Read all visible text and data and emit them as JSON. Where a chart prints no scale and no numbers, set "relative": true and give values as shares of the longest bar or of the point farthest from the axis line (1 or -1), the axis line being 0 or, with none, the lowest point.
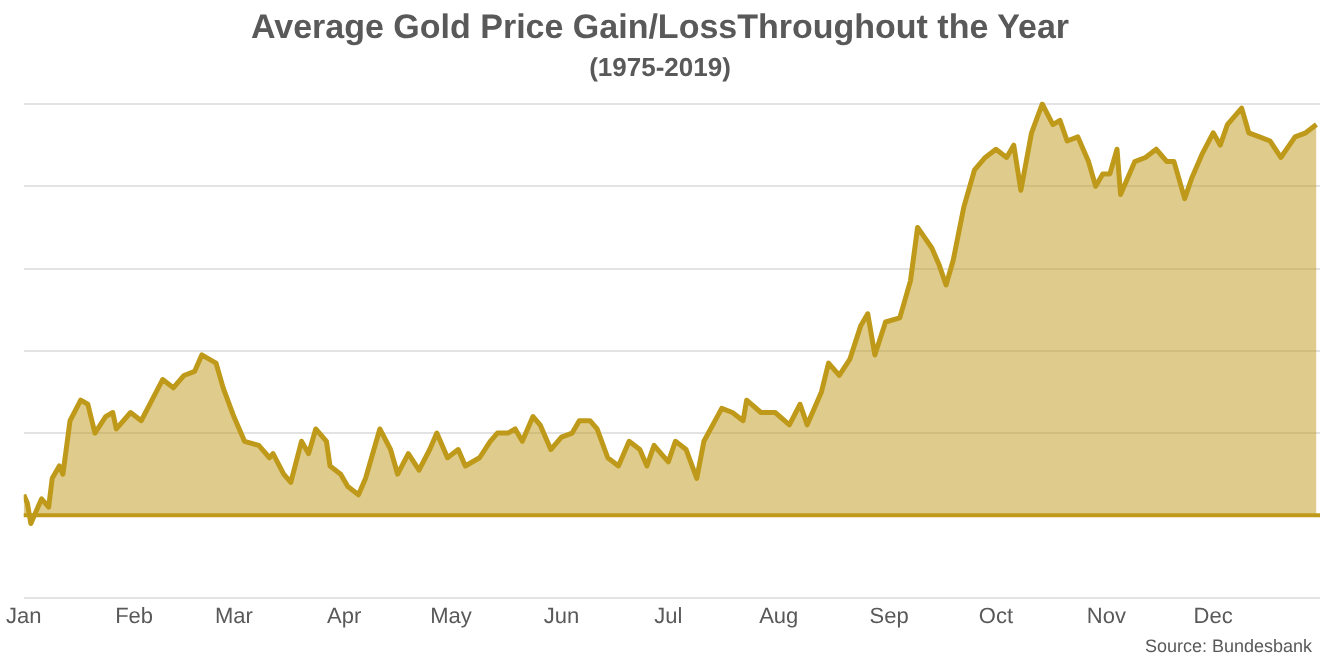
{
  "chart_data": {
    "type": "area",
    "title": "Average Gold Price Gain/LossThroughout the Year",
    "subtitle": "(1975-2019)",
    "relative": true,
    "grid": "y",
    "ref_lines": [
      {
        "axis": "y",
        "value": 0,
        "color": "#bf9a1a"
      }
    ],
    "annotations": [
      "Source: Bundesbank"
    ],
    "xlim": [
      "--01-01",
      "--12-31"
    ],
    "xticks": [
      {
        "value": "--01-01",
        "label": "Jan"
      },
      {
        "value": "--02-01",
        "label": "Feb"
      },
      {
        "value": "--03-01",
        "label": "Mar"
      },
      {
        "value": "--04-01",
        "label": "Apr"
      },
      {
        "value": "--05-01",
        "label": "May"
      },
      {
        "value": "--06-01",
        "label": "Jun"
      },
      {
        "value": "--07-01",
        "label": "Jul"
      },
      {
        "value": "--08-01",
        "label": "Aug"
      },
      {
        "value": "--09-01",
        "label": "Sep"
      },
      {
        "value": "--10-01",
        "label": "Oct"
      },
      {
        "value": "--11-01",
        "label": "Nov"
      },
      {
        "value": "--12-01",
        "label": "Dec"
      }
    ],
    "series": [
      {
        "color": "#bf9a1a",
        "x": [
          "--01-01",
          "--01-02",
          "--01-03",
          "--01-05",
          "--01-06",
          "--01-08",
          "--01-09",
          "--01-11",
          "--01-12",
          "--01-14",
          "--01-17",
          "--01-19",
          "--01-21",
          "--01-24",
          "--01-26",
          "--01-27",
          "--01-31",
          "--02-03",
          "--02-06",
          "--02-09",
          "--02-12",
          "--02-15",
          "--02-18",
          "--02-20",
          "--02-24",
          "--02-26",
          "--03-01",
          "--03-04",
          "--03-08",
          "--03-11",
          "--03-12",
          "--03-15",
          "--03-17",
          "--03-20",
          "--03-22",
          "--03-24",
          "--03-27",
          "--03-28",
          "--03-31",
          "--04-02",
          "--04-05",
          "--04-07",
          "--04-10",
          "--04-11",
          "--04-14",
          "--04-16",
          "--04-19",
          "--04-22",
          "--04-25",
          "--04-27",
          "--04-30",
          "--05-03",
          "--05-05",
          "--05-09",
          "--05-12",
          "--05-14",
          "--05-17",
          "--05-19",
          "--05-21",
          "--05-24",
          "--05-26",
          "--05-29",
          "--06-01",
          "--06-04",
          "--06-06",
          "--06-09",
          "--06-11",
          "--06-14",
          "--06-17",
          "--06-20",
          "--06-23",
          "--06-25",
          "--06-27",
          "--06-28",
          "--07-01",
          "--07-03",
          "--07-06",
          "--07-09",
          "--07-11",
          "--07-16",
          "--07-19",
          "--07-22",
          "--07-23",
          "--07-27",
          "--07-31",
          "--08-04",
          "--08-07",
          "--08-09",
          "--08-13",
          "--08-15",
          "--08-18",
          "--08-21",
          "--08-24",
          "--08-26",
          "--08-28",
          "--08-31",
          "--09-04",
          "--09-07",
          "--09-09",
          "--09-13",
          "--09-15",
          "--09-17",
          "--09-19",
          "--09-22",
          "--09-25",
          "--09-28",
          "--10-01",
          "--10-04",
          "--10-06",
          "--10-08",
          "--10-11",
          "--10-14",
          "--10-17",
          "--10-19",
          "--10-21",
          "--10-24",
          "--10-27",
          "--10-29",
          "--10-31",
          "--11-02",
          "--11-04",
          "--11-05",
          "--11-09",
          "--11-12",
          "--11-15",
          "--11-18",
          "--11-20",
          "--11-23",
          "--11-25",
          "--11-28",
          "--12-01",
          "--12-03",
          "--12-05",
          "--12-09",
          "--12-11",
          "--12-14",
          "--12-17",
          "--12-20",
          "--12-24",
          "--12-27",
          "--12-30"
        ],
        "values": [
          0.05,
          0.03,
          -0.02,
          0.02,
          0.04,
          0.02,
          0.09,
          0.12,
          0.1,
          0.23,
          0.28,
          0.27,
          0.2,
          0.24,
          0.25,
          0.21,
          0.25,
          0.23,
          0.28,
          0.33,
          0.31,
          0.34,
          0.35,
          0.39,
          0.37,
          0.31,
          0.24,
          0.18,
          0.17,
          0.14,
          0.15,
          0.1,
          0.08,
          0.18,
          0.15,
          0.21,
          0.18,
          0.12,
          0.1,
          0.07,
          0.05,
          0.09,
          0.18,
          0.21,
          0.16,
          0.1,
          0.15,
          0.11,
          0.16,
          0.2,
          0.14,
          0.16,
          0.12,
          0.14,
          0.18,
          0.2,
          0.2,
          0.21,
          0.18,
          0.24,
          0.22,
          0.16,
          0.19,
          0.2,
          0.23,
          0.23,
          0.21,
          0.14,
          0.12,
          0.18,
          0.16,
          0.12,
          0.17,
          0.16,
          0.13,
          0.18,
          0.16,
          0.09,
          0.18,
          0.26,
          0.25,
          0.23,
          0.28,
          0.25,
          0.25,
          0.22,
          0.27,
          0.22,
          0.3,
          0.37,
          0.34,
          0.38,
          0.46,
          0.49,
          0.39,
          0.47,
          0.48,
          0.57,
          0.7,
          0.65,
          0.61,
          0.56,
          0.62,
          0.75,
          0.84,
          0.87,
          0.89,
          0.87,
          0.9,
          0.79,
          0.93,
          1,
          0.95,
          0.96,
          0.91,
          0.92,
          0.86,
          0.8,
          0.83,
          0.83,
          0.89,
          0.78,
          0.86,
          0.87,
          0.89,
          0.86,
          0.86,
          0.77,
          0.82,
          0.88,
          0.93,
          0.9,
          0.95,
          0.99,
          0.93,
          0.92,
          0.91,
          0.87,
          0.92,
          0.93,
          0.95
        ]
      }
    ]
  }
}
